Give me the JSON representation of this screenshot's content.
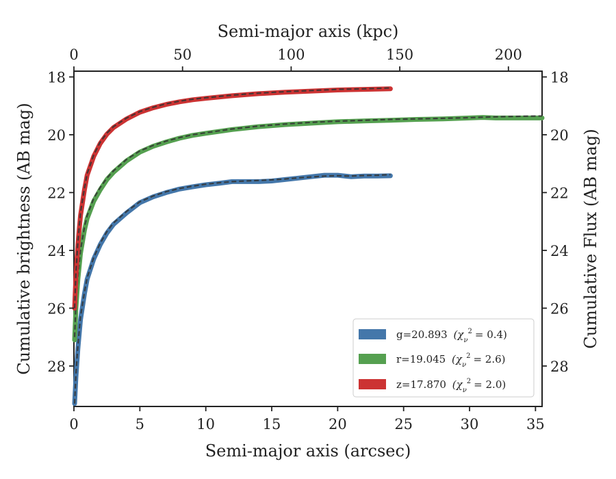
{
  "chart_data": {
    "type": "line",
    "xlabel": "Semi-major axis (arcsec)",
    "ylabel": "Cumulative brightness (AB mag)",
    "ylabel_right": "Cumulative Flux (AB mag)",
    "top_xlabel": "Semi-major axis (kpc)",
    "xlim": [
      0,
      35.5
    ],
    "ylim": [
      29.4,
      17.8
    ],
    "top_xlim": [
      0,
      215.5
    ],
    "x_ticks": [
      "0",
      "5",
      "10",
      "15",
      "20",
      "25",
      "30",
      "35"
    ],
    "y_ticks": [
      "18",
      "20",
      "22",
      "24",
      "26",
      "28"
    ],
    "top_x_ticks": [
      "0",
      "50",
      "100",
      "150",
      "200"
    ],
    "grid": false,
    "legend_position": "lower-right",
    "series": [
      {
        "name": "g=20.893",
        "chi2": "= 0.4)",
        "color": "#4477aa",
        "x": [
          0.05,
          0.15,
          0.3,
          0.5,
          0.8,
          1.0,
          1.5,
          2,
          2.5,
          3,
          4,
          5,
          6,
          7,
          8,
          9,
          10,
          11,
          12,
          13,
          14,
          15,
          16,
          17,
          18,
          19,
          20,
          21,
          22,
          23,
          24
        ],
        "y": [
          29.3,
          28.4,
          27.4,
          26.4,
          25.5,
          25.0,
          24.3,
          23.8,
          23.4,
          23.1,
          22.7,
          22.35,
          22.15,
          22.0,
          21.88,
          21.8,
          21.73,
          21.68,
          21.62,
          21.62,
          21.62,
          21.6,
          21.55,
          21.5,
          21.45,
          21.4,
          21.4,
          21.45,
          21.43,
          21.43,
          21.42
        ],
        "fit_y": [
          29.3,
          28.3,
          27.3,
          26.3,
          25.45,
          24.95,
          24.25,
          23.75,
          23.35,
          23.05,
          22.65,
          22.32,
          22.12,
          21.97,
          21.86,
          21.78,
          21.71,
          21.66,
          21.62,
          21.6,
          21.58,
          21.56,
          21.53,
          21.49,
          21.46,
          21.43,
          21.42,
          21.43,
          21.41,
          21.4,
          21.38
        ]
      },
      {
        "name": "r=19.045",
        "chi2": "= 2.6)",
        "color": "#55a050",
        "x": [
          0.05,
          0.15,
          0.3,
          0.5,
          0.8,
          1.0,
          1.5,
          2,
          2.5,
          3,
          4,
          5,
          6,
          7,
          8,
          9,
          10,
          12,
          14,
          16,
          18,
          20,
          22,
          24,
          26,
          28,
          30,
          31,
          32,
          33,
          34,
          35.5
        ],
        "y": [
          27.1,
          26.0,
          25.0,
          24.1,
          23.3,
          22.9,
          22.3,
          21.9,
          21.55,
          21.3,
          20.9,
          20.6,
          20.4,
          20.25,
          20.12,
          20.02,
          19.95,
          19.82,
          19.72,
          19.65,
          19.6,
          19.55,
          19.52,
          19.5,
          19.47,
          19.45,
          19.42,
          19.4,
          19.42,
          19.42,
          19.42,
          19.42
        ],
        "fit_y": [
          27.0,
          25.9,
          24.9,
          24.0,
          23.2,
          22.8,
          22.2,
          21.82,
          21.5,
          21.25,
          20.85,
          20.56,
          20.37,
          20.22,
          20.1,
          20.0,
          19.93,
          19.8,
          19.7,
          19.63,
          19.57,
          19.53,
          19.5,
          19.47,
          19.45,
          19.43,
          19.41,
          19.39,
          19.38,
          19.37,
          19.36,
          19.35
        ]
      },
      {
        "name": "z=17.870",
        "chi2": "= 2.0)",
        "color": "#cc3333",
        "x": [
          0.05,
          0.15,
          0.3,
          0.5,
          0.8,
          1.0,
          1.5,
          2,
          2.5,
          3,
          4,
          5,
          6,
          7,
          8,
          9,
          10,
          12,
          14,
          16,
          18,
          20,
          22,
          24
        ],
        "y": [
          26.0,
          24.9,
          23.8,
          22.8,
          21.9,
          21.4,
          20.75,
          20.3,
          19.98,
          19.75,
          19.45,
          19.22,
          19.07,
          18.95,
          18.86,
          18.79,
          18.74,
          18.65,
          18.58,
          18.53,
          18.49,
          18.45,
          18.43,
          18.41
        ],
        "fit_y": [
          26.0,
          24.8,
          23.7,
          22.7,
          21.85,
          21.35,
          20.7,
          20.25,
          19.94,
          19.72,
          19.42,
          19.2,
          19.05,
          18.93,
          18.84,
          18.77,
          18.72,
          18.63,
          18.56,
          18.51,
          18.47,
          18.43,
          18.41,
          18.38
        ]
      }
    ]
  }
}
